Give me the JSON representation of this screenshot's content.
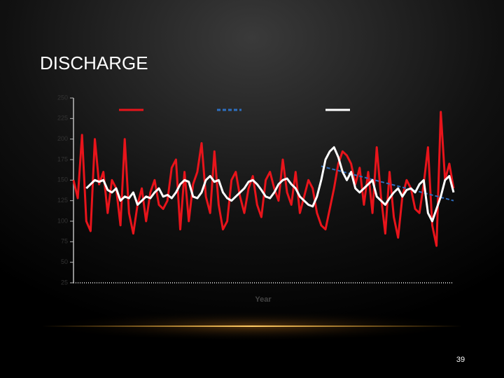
{
  "slide": {
    "page_number": "39"
  },
  "chart_data": {
    "type": "line",
    "title": "DISCHARGE",
    "x_label": "Year",
    "categories": [
      null,
      null,
      null,
      null,
      null,
      null,
      null,
      null,
      null,
      null,
      null,
      null,
      null,
      null,
      null,
      null,
      null,
      null,
      null,
      null,
      null,
      null,
      null,
      null,
      null,
      null,
      null,
      null,
      null,
      null,
      null,
      null,
      null,
      null,
      null,
      null,
      null,
      null,
      null,
      null,
      null,
      null,
      null,
      null,
      null,
      null,
      null,
      null,
      null,
      null,
      null,
      null,
      null,
      null,
      null,
      null,
      null,
      null,
      null,
      null,
      null,
      null,
      null,
      null,
      null,
      null,
      null,
      null,
      null,
      null,
      null,
      null,
      null,
      null,
      null,
      null,
      null,
      null,
      null,
      null,
      null,
      null,
      null,
      null,
      null,
      null,
      null,
      null,
      null,
      null
    ],
    "series": [
      {
        "color": "#e8141b",
        "dash": false,
        "values": [
          150,
          128,
          205,
          100,
          88,
          200,
          145,
          160,
          110,
          150,
          140,
          95,
          200,
          110,
          85,
          120,
          140,
          100,
          135,
          150,
          120,
          115,
          125,
          165,
          175,
          90,
          160,
          100,
          145,
          160,
          195,
          130,
          110,
          185,
          120,
          90,
          100,
          150,
          160,
          130,
          110,
          140,
          155,
          120,
          105,
          150,
          160,
          140,
          125,
          175,
          135,
          120,
          160,
          110,
          130,
          150,
          140,
          110,
          95,
          90,
          115,
          140,
          170,
          185,
          180,
          170,
          145,
          165,
          120,
          160,
          110,
          190,
          130,
          85,
          160,
          105,
          80,
          130,
          150,
          140,
          115,
          110,
          145,
          190,
          95,
          70,
          233,
          150,
          170,
          140
        ]
      },
      {
        "color": "#2e6fc0",
        "dash": true,
        "values": [
          null,
          null,
          null,
          null,
          null,
          null,
          null,
          null,
          null,
          null,
          null,
          null,
          null,
          null,
          null,
          null,
          null,
          null,
          null,
          null,
          null,
          null,
          null,
          null,
          null,
          null,
          null,
          null,
          null,
          null,
          null,
          null,
          null,
          null,
          null,
          null,
          null,
          null,
          null,
          null,
          null,
          null,
          null,
          null,
          null,
          null,
          null,
          null,
          null,
          null,
          null,
          null,
          null,
          null,
          null,
          null,
          null,
          null,
          167,
          165.6,
          164.3,
          162.9,
          161.6,
          160.2,
          158.9,
          157.5,
          156.2,
          154.8,
          153.5,
          152.1,
          150.7,
          149.4,
          148,
          146.7,
          145.3,
          144,
          142.6,
          141.3,
          139.9,
          138.6,
          137.2,
          135.9,
          134.5,
          133.2,
          131.8,
          130.5,
          129.1,
          127.8,
          126.4,
          125
        ]
      },
      {
        "color": "#ffffff",
        "dash": false,
        "values": [
          null,
          null,
          null,
          140,
          145,
          150,
          148,
          150,
          138,
          135,
          140,
          125,
          130,
          128,
          135,
          120,
          125,
          130,
          128,
          135,
          140,
          130,
          132,
          128,
          135,
          145,
          150,
          148,
          130,
          128,
          135,
          150,
          155,
          148,
          150,
          135,
          128,
          125,
          130,
          135,
          140,
          148,
          150,
          145,
          138,
          130,
          128,
          135,
          145,
          150,
          152,
          145,
          140,
          130,
          125,
          120,
          118,
          130,
          150,
          175,
          185,
          190,
          178,
          160,
          150,
          160,
          140,
          135,
          140,
          145,
          150,
          130,
          125,
          120,
          128,
          135,
          140,
          130,
          138,
          140,
          135,
          145,
          150,
          110,
          100,
          115,
          130,
          150,
          155,
          135
        ]
      }
    ],
    "ylim": [
      25,
      250
    ],
    "yticks": [
      25,
      50,
      75,
      100,
      125,
      150,
      175,
      200,
      225,
      250
    ]
  }
}
